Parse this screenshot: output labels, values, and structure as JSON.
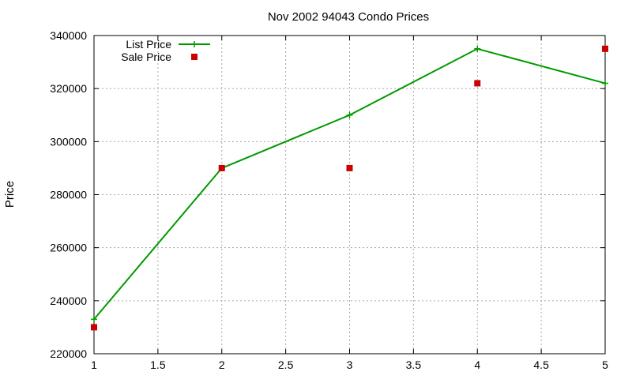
{
  "chart_data": {
    "type": "line",
    "title": "Nov 2002 94043 Condo Prices",
    "xlabel": "",
    "ylabel": "Price",
    "xlim": [
      1,
      5
    ],
    "ylim": [
      220000,
      340000
    ],
    "xticks": [
      "1",
      "1.5",
      "2",
      "2.5",
      "3",
      "3.5",
      "4",
      "4.5",
      "5"
    ],
    "yticks": [
      "220000",
      "240000",
      "260000",
      "280000",
      "300000",
      "320000",
      "340000"
    ],
    "grid": true,
    "legend_position": "top-left",
    "series": [
      {
        "name": "List Price",
        "style": "linespoints",
        "marker": "plus",
        "color": "#009900",
        "x": [
          1,
          2,
          3,
          4,
          5
        ],
        "y": [
          233000,
          290000,
          310000,
          335000,
          322000
        ]
      },
      {
        "name": "Sale Price",
        "style": "points",
        "marker": "square",
        "color": "#cc0000",
        "x": [
          1,
          2,
          3,
          4,
          5
        ],
        "y": [
          230000,
          290000,
          290000,
          322000,
          335000
        ]
      }
    ]
  }
}
